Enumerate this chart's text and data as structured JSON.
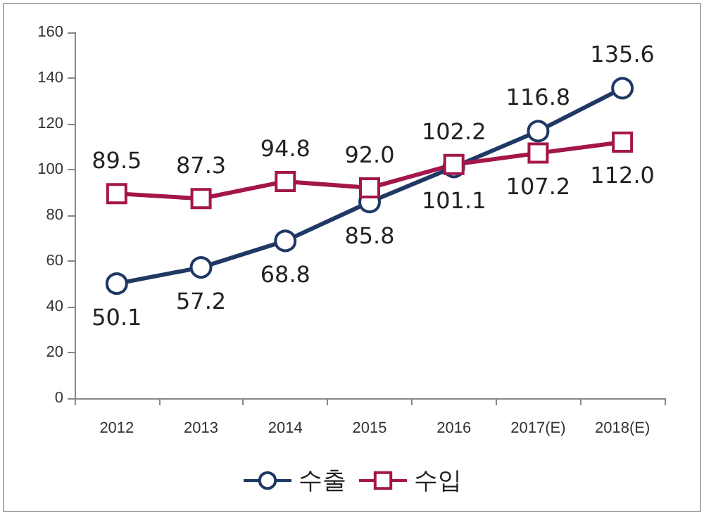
{
  "chart_data": {
    "type": "line",
    "categories": [
      "2012",
      "2013",
      "2014",
      "2015",
      "2016",
      "2017(E)",
      "2018(E)"
    ],
    "series": [
      {
        "name": "수출",
        "color": "#1f3864",
        "marker": "circle",
        "values": [
          50.1,
          57.2,
          68.8,
          85.8,
          101.1,
          116.8,
          135.6
        ],
        "value_labels": [
          "50.1",
          "57.2",
          "68.8",
          "85.8",
          "101.1",
          "116.8",
          "135.6"
        ]
      },
      {
        "name": "수입",
        "color": "#a3164a",
        "marker": "square",
        "values": [
          89.5,
          87.3,
          94.8,
          92.0,
          102.2,
          107.2,
          112.0
        ],
        "value_labels": [
          "89.5",
          "87.3",
          "94.8",
          "92.0",
          "102.2",
          "107.2",
          "112.0"
        ]
      }
    ],
    "ylim": [
      0,
      160
    ],
    "yticks": [
      0,
      20,
      40,
      60,
      80,
      100,
      120,
      140,
      160
    ],
    "grid": false,
    "legend": "bottom"
  }
}
